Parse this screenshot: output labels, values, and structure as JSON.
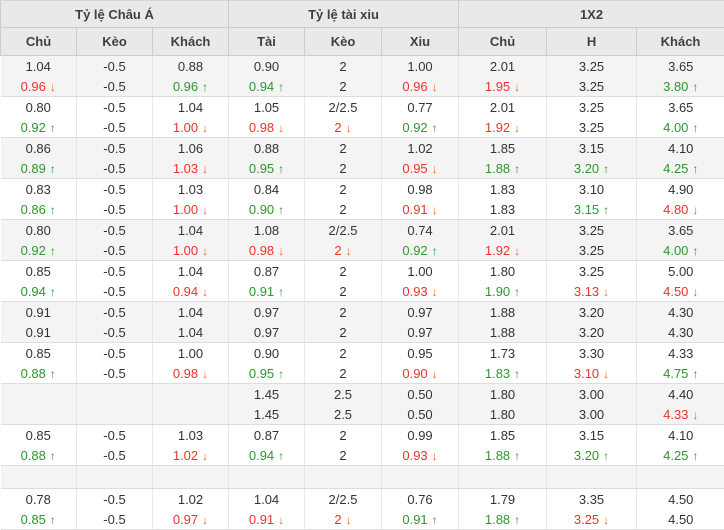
{
  "table": {
    "groups": [
      {
        "label": "Tỷ lệ Châu Á"
      },
      {
        "label": "Tỷ lệ tài xiu"
      },
      {
        "label": "1X2"
      }
    ],
    "columns": [
      "Chủ",
      "Kèo",
      "Khách",
      "Tài",
      "Kèo",
      "Xiu",
      "Chủ",
      "H",
      "Khách"
    ],
    "icons": {
      "up": "↑",
      "down": "↓"
    },
    "colors": {
      "up_text_and_arrow": "#2e962e",
      "down_text": "#e8352a",
      "down_arrow": "#f65e1a",
      "text": "#333333",
      "header_bg": "#e9e9e9",
      "row_alt_bg": "#f4f4f4"
    },
    "pairs": [
      {
        "shade": "gray",
        "lines": [
          [
            "1.04",
            "-0.5",
            "0.88",
            "0.90",
            "2",
            "1.00",
            "2.01",
            "3.25",
            "3.65"
          ],
          [
            [
              "0.96",
              "down"
            ],
            "-0.5",
            [
              "0.96",
              "up"
            ],
            [
              "0.94",
              "up"
            ],
            "2",
            [
              "0.96",
              "down"
            ],
            [
              "1.95",
              "down"
            ],
            "3.25",
            [
              "3.80",
              "up"
            ]
          ]
        ]
      },
      {
        "shade": "white",
        "lines": [
          [
            "0.80",
            "-0.5",
            "1.04",
            "1.05",
            "2/2.5",
            "0.77",
            "2.01",
            "3.25",
            "3.65"
          ],
          [
            [
              "0.92",
              "up"
            ],
            "-0.5",
            [
              "1.00",
              "down"
            ],
            [
              "0.98",
              "down"
            ],
            [
              "2",
              "down"
            ],
            [
              "0.92",
              "up"
            ],
            [
              "1.92",
              "down"
            ],
            "3.25",
            [
              "4.00",
              "up"
            ]
          ]
        ]
      },
      {
        "shade": "gray",
        "lines": [
          [
            "0.86",
            "-0.5",
            "1.06",
            "0.88",
            "2",
            "1.02",
            "1.85",
            "3.15",
            "4.10"
          ],
          [
            [
              "0.89",
              "up"
            ],
            "-0.5",
            [
              "1.03",
              "down"
            ],
            [
              "0.95",
              "up"
            ],
            "2",
            [
              "0.95",
              "down"
            ],
            [
              "1.88",
              "up"
            ],
            [
              "3.20",
              "up"
            ],
            [
              "4.25",
              "up"
            ]
          ]
        ]
      },
      {
        "shade": "white",
        "lines": [
          [
            "0.83",
            "-0.5",
            "1.03",
            "0.84",
            "2",
            "0.98",
            "1.83",
            "3.10",
            "4.90"
          ],
          [
            [
              "0.86",
              "up"
            ],
            "-0.5",
            [
              "1.00",
              "down"
            ],
            [
              "0.90",
              "up"
            ],
            "2",
            [
              "0.91",
              "down"
            ],
            "1.83",
            [
              "3.15",
              "up"
            ],
            [
              "4.80",
              "down"
            ]
          ]
        ]
      },
      {
        "shade": "gray",
        "lines": [
          [
            "0.80",
            "-0.5",
            "1.04",
            "1.08",
            "2/2.5",
            "0.74",
            "2.01",
            "3.25",
            "3.65"
          ],
          [
            [
              "0.92",
              "up"
            ],
            "-0.5",
            [
              "1.00",
              "down"
            ],
            [
              "0.98",
              "down"
            ],
            [
              "2",
              "down"
            ],
            [
              "0.92",
              "up"
            ],
            [
              "1.92",
              "down"
            ],
            "3.25",
            [
              "4.00",
              "up"
            ]
          ]
        ]
      },
      {
        "shade": "white",
        "lines": [
          [
            "0.85",
            "-0.5",
            "1.04",
            "0.87",
            "2",
            "1.00",
            "1.80",
            "3.25",
            "5.00"
          ],
          [
            [
              "0.94",
              "up"
            ],
            "-0.5",
            [
              "0.94",
              "down"
            ],
            [
              "0.91",
              "up"
            ],
            "2",
            [
              "0.93",
              "down"
            ],
            [
              "1.90",
              "up"
            ],
            [
              "3.13",
              "down"
            ],
            [
              "4.50",
              "down"
            ]
          ]
        ]
      },
      {
        "shade": "gray",
        "lines": [
          [
            "0.91",
            "-0.5",
            "1.04",
            "0.97",
            "2",
            "0.97",
            "1.88",
            "3.20",
            "4.30"
          ],
          [
            "0.91",
            "-0.5",
            "1.04",
            "0.97",
            "2",
            "0.97",
            "1.88",
            "3.20",
            "4.30"
          ]
        ]
      },
      {
        "shade": "white",
        "lines": [
          [
            "0.85",
            "-0.5",
            "1.00",
            "0.90",
            "2",
            "0.95",
            "1.73",
            "3.30",
            "4.33"
          ],
          [
            [
              "0.88",
              "up"
            ],
            "-0.5",
            [
              "0.98",
              "down"
            ],
            [
              "0.95",
              "up"
            ],
            "2",
            [
              "0.90",
              "down"
            ],
            [
              "1.83",
              "up"
            ],
            [
              "3.10",
              "down"
            ],
            [
              "4.75",
              "up"
            ]
          ]
        ]
      },
      {
        "shade": "gray",
        "lines": [
          [
            "",
            "",
            "",
            "1.45",
            "2.5",
            "0.50",
            "1.80",
            "3.00",
            "4.40"
          ],
          [
            "",
            "",
            "",
            "1.45",
            "2.5",
            "0.50",
            "1.80",
            "3.00",
            [
              "4.33",
              "down"
            ]
          ]
        ]
      },
      {
        "shade": "white",
        "lines": [
          [
            "0.85",
            "-0.5",
            "1.03",
            "0.87",
            "2",
            "0.99",
            "1.85",
            "3.15",
            "4.10"
          ],
          [
            [
              "0.88",
              "up"
            ],
            "-0.5",
            [
              "1.02",
              "down"
            ],
            [
              "0.94",
              "up"
            ],
            "2",
            [
              "0.93",
              "down"
            ],
            [
              "1.88",
              "up"
            ],
            [
              "3.20",
              "up"
            ],
            [
              "4.25",
              "up"
            ]
          ]
        ]
      },
      {
        "shade": "gray",
        "spacer": true,
        "lines": [
          [
            "",
            "",
            "",
            "",
            "",
            "",
            "",
            "",
            ""
          ]
        ]
      },
      {
        "shade": "white",
        "lines": [
          [
            "0.78",
            "-0.5",
            "1.02",
            "1.04",
            "2/2.5",
            "0.76",
            "1.79",
            "3.35",
            "4.50"
          ],
          [
            [
              "0.85",
              "up"
            ],
            "-0.5",
            [
              "0.97",
              "down"
            ],
            [
              "0.91",
              "down"
            ],
            [
              "2",
              "down"
            ],
            [
              "0.91",
              "up"
            ],
            [
              "1.88",
              "up"
            ],
            [
              "3.25",
              "down"
            ],
            "4.50"
          ]
        ]
      }
    ]
  }
}
